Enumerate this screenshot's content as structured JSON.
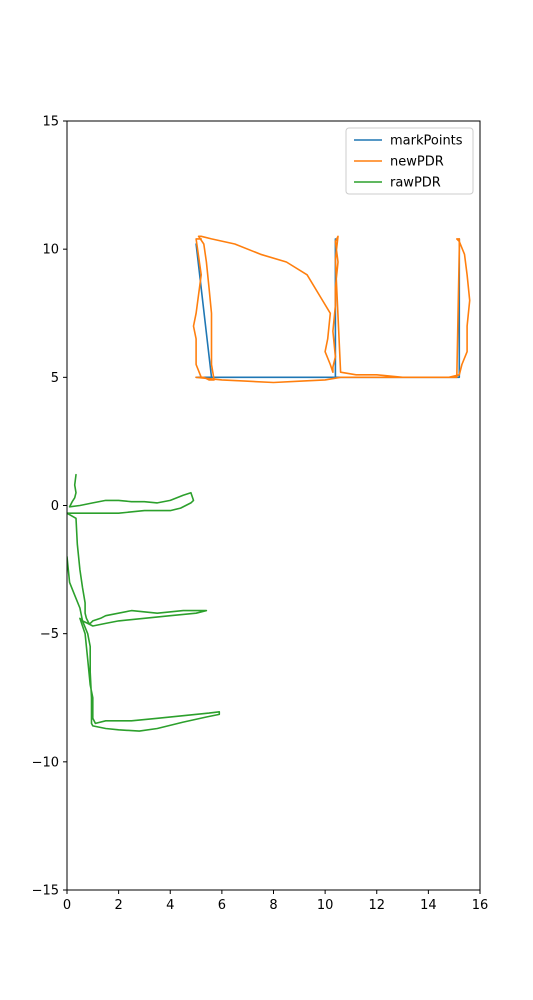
{
  "chart_data": {
    "type": "line",
    "title": "",
    "xlabel": "",
    "ylabel": "",
    "xlim": [
      0,
      16
    ],
    "ylim": [
      -15,
      15
    ],
    "grid": false,
    "legend_placement": "top-right",
    "x_ticks": [
      0,
      2,
      4,
      6,
      8,
      10,
      12,
      14,
      16
    ],
    "y_ticks": [
      -15,
      -10,
      -5,
      0,
      5,
      10,
      15
    ],
    "series": [
      {
        "name": "markPoints",
        "color": "#1f77b4",
        "x": [
          5.0,
          5.6,
          5.0,
          10.4,
          10.4,
          10.4,
          15.2,
          15.2,
          15.2
        ],
        "y": [
          10.2,
          5.0,
          5.0,
          5.0,
          10.4,
          5.0,
          5.0,
          10.4,
          5.0
        ]
      },
      {
        "name": "newPDR",
        "color": "#ff7f0e",
        "x": [
          5.2,
          5.0,
          5.2,
          5.0,
          4.9,
          5.0,
          5.0,
          5.2,
          5.3,
          5.5,
          5.7,
          5.6,
          5.6,
          5.6,
          5.5,
          5.4,
          5.3,
          5.1,
          5.2,
          5.6,
          6.5,
          7.5,
          8.5,
          9.3,
          9.9,
          10.2,
          10.1,
          10.0,
          10.2,
          10.3,
          10.3,
          10.4,
          10.3,
          10.4,
          10.4,
          10.5,
          10.4,
          10.5,
          10.4,
          10.6,
          11.2,
          12.0,
          13.0,
          14.0,
          14.8,
          15.2,
          15.3,
          15.5,
          15.5,
          15.6,
          15.5,
          15.4,
          15.2,
          15.1,
          15.2,
          15.2,
          15.1,
          14.5,
          13.5,
          12.5,
          11.5,
          10.6,
          10.0,
          9.0,
          8.0,
          7.0,
          6.0,
          5.0
        ],
        "y": [
          10.4,
          10.4,
          9.0,
          7.5,
          7.0,
          6.5,
          5.5,
          5.0,
          5.0,
          4.9,
          4.9,
          5.5,
          6.5,
          7.5,
          8.5,
          9.5,
          10.2,
          10.5,
          10.5,
          10.4,
          10.2,
          9.8,
          9.5,
          9.0,
          8.0,
          7.5,
          6.5,
          6.0,
          5.5,
          5.2,
          5.4,
          5.8,
          6.8,
          7.8,
          8.5,
          9.5,
          10.3,
          10.5,
          9.6,
          5.2,
          5.1,
          5.1,
          5.0,
          5.0,
          5.0,
          5.1,
          5.5,
          6.0,
          7.0,
          8.0,
          9.0,
          9.8,
          10.3,
          10.4,
          10.4,
          10.0,
          5.0,
          5.0,
          5.0,
          5.0,
          5.0,
          5.0,
          4.9,
          4.85,
          4.8,
          4.85,
          4.9,
          5.0
        ]
      },
      {
        "name": "rawPDR",
        "color": "#2ca02c",
        "x": [
          0.35,
          0.3,
          0.35,
          0.3,
          0.2,
          0.1,
          0.5,
          1.0,
          1.5,
          2.0,
          2.5,
          3.0,
          3.5,
          4.0,
          4.5,
          4.8,
          4.9,
          4.8,
          4.4,
          4.0,
          3.0,
          2.0,
          1.0,
          0.5,
          0.0,
          0.35,
          0.4,
          0.5,
          0.6,
          0.7,
          0.7,
          0.75,
          0.8,
          0.85,
          0.9,
          1.0,
          1.3,
          1.5,
          1.5,
          2.5,
          3.5,
          4.5,
          5.0,
          5.4,
          5.0,
          4.0,
          3.0,
          2.0,
          1.5,
          1.0,
          0.8,
          0.6,
          0.5,
          0.7,
          0.8,
          0.9,
          1.0,
          1.0,
          1.0,
          1.1,
          1.5,
          2.5,
          3.5,
          4.5,
          5.5,
          5.9,
          5.9,
          5.4,
          4.5,
          3.5,
          2.8,
          2.0,
          1.5,
          1.0,
          0.95,
          0.95,
          0.9,
          0.9,
          0.8,
          0.6,
          0.5,
          0.3,
          0.1,
          0.0
        ],
        "y": [
          1.2,
          0.8,
          0.5,
          0.3,
          0.15,
          -0.05,
          0.0,
          0.1,
          0.2,
          0.2,
          0.15,
          0.15,
          0.1,
          0.2,
          0.4,
          0.5,
          0.2,
          0.1,
          -0.1,
          -0.2,
          -0.2,
          -0.3,
          -0.3,
          -0.3,
          -0.3,
          -0.5,
          -1.5,
          -2.5,
          -3.2,
          -3.8,
          -4.2,
          -4.4,
          -4.5,
          -4.6,
          -4.6,
          -4.5,
          -4.4,
          -4.3,
          -4.3,
          -4.1,
          -4.2,
          -4.1,
          -4.1,
          -4.1,
          -4.2,
          -4.3,
          -4.4,
          -4.5,
          -4.6,
          -4.7,
          -4.6,
          -4.5,
          -4.4,
          -5.0,
          -6.0,
          -7.0,
          -7.5,
          -8.0,
          -8.3,
          -8.5,
          -8.4,
          -8.4,
          -8.3,
          -8.2,
          -8.1,
          -8.05,
          -8.15,
          -8.25,
          -8.45,
          -8.7,
          -8.8,
          -8.75,
          -8.7,
          -8.6,
          -8.5,
          -7.5,
          -6.5,
          -5.5,
          -5.0,
          -4.5,
          -4.0,
          -3.5,
          -3.0,
          -2.0
        ]
      }
    ]
  }
}
